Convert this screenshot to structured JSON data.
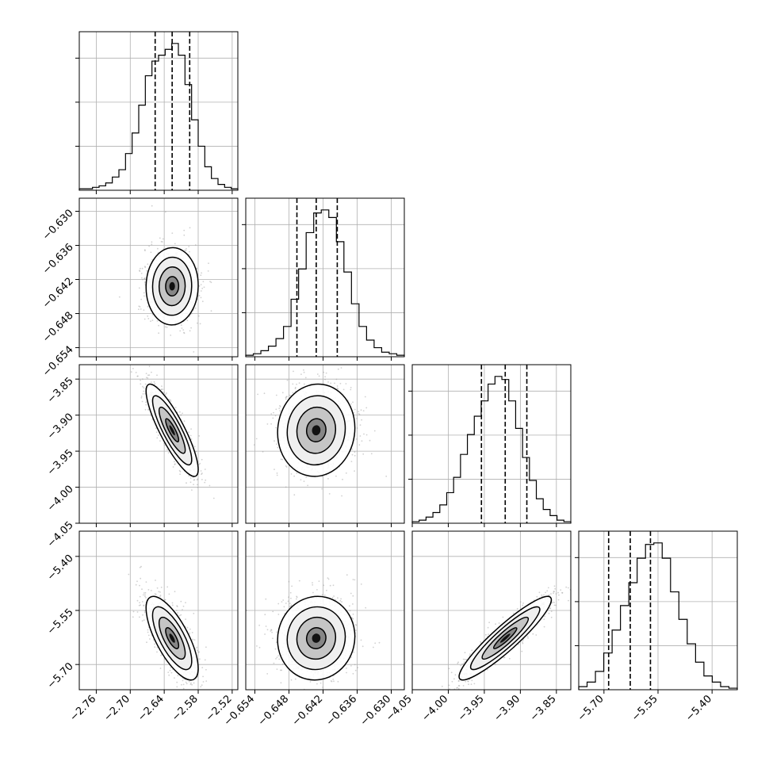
{
  "chart_data": {
    "type": "corner",
    "description_free": true,
    "parameters": [
      {
        "range": [
          -2.79,
          -2.51
        ],
        "ticks": [
          -2.76,
          -2.7,
          -2.64,
          -2.58,
          -2.52
        ],
        "tick_labels": [
          "−2.76",
          "−2.70",
          "−2.64",
          "−2.58",
          "−2.52"
        ],
        "quantiles": [
          -2.656,
          -2.626,
          -2.595
        ],
        "hist": [
          1,
          1,
          2,
          3,
          5,
          9,
          14,
          25,
          39,
          58,
          78,
          88,
          92,
          96,
          100,
          92,
          72,
          48,
          30,
          16,
          8,
          4,
          2,
          1
        ]
      },
      {
        "range": [
          -0.6556,
          -0.6277
        ],
        "ticks": [
          -0.654,
          -0.648,
          -0.642,
          -0.636,
          -0.63
        ],
        "tick_labels": [
          "−0.654",
          "−0.648",
          "−0.642",
          "−0.636",
          "−0.630"
        ],
        "quantiles": [
          -0.6466,
          -0.6432,
          -0.6395
        ],
        "hist": [
          1,
          2,
          4,
          7,
          12,
          20,
          38,
          58,
          82,
          95,
          97,
          92,
          76,
          56,
          35,
          20,
          11,
          6,
          3,
          2,
          1
        ]
      },
      {
        "range": [
          -4.05,
          -3.83
        ],
        "ticks": [
          -4.05,
          -4.0,
          -3.95,
          -3.9,
          -3.85
        ],
        "tick_labels": [
          "−4.05",
          "−4.00",
          "−3.95",
          "−3.90",
          "−3.85"
        ],
        "quantiles": [
          -3.954,
          -3.921,
          -3.891
        ],
        "hist": [
          1,
          2,
          4,
          7,
          12,
          20,
          30,
          45,
          58,
          70,
          80,
          91,
          96,
          94,
          80,
          62,
          43,
          28,
          16,
          9,
          5,
          2,
          1
        ]
      },
      {
        "range": [
          -5.77,
          -5.33
        ],
        "ticks": [
          -5.7,
          -5.55,
          -5.4
        ],
        "tick_labels": [
          "−5.70",
          "−5.55",
          "−5.40"
        ],
        "quantiles": [
          -5.687,
          -5.627,
          -5.571
        ],
        "hist": [
          2,
          5,
          12,
          24,
          39,
          55,
          70,
          86,
          95,
          96,
          86,
          64,
          46,
          30,
          18,
          9,
          5,
          2,
          1
        ]
      }
    ],
    "correlations": [
      [
        1.0,
        0.02,
        -0.85,
        -0.72
      ],
      [
        0.02,
        1.0,
        0.05,
        0.04
      ],
      [
        -0.85,
        0.05,
        1.0,
        0.92
      ],
      [
        -0.72,
        0.04,
        0.92,
        1.0
      ]
    ],
    "sigma": [
      0.023,
      0.0034,
      0.032,
      0.058
    ],
    "center": [
      -2.626,
      -0.6432,
      -3.921,
      -5.627
    ],
    "contour_levels_sigma": [
      0.5,
      1.0,
      1.5,
      2.0
    ],
    "grid": true,
    "colors": {
      "hist": "#000000",
      "contour": "#000000",
      "points": "#9a9a9a",
      "density": "#000000",
      "grid": "#b0b0b0"
    }
  }
}
